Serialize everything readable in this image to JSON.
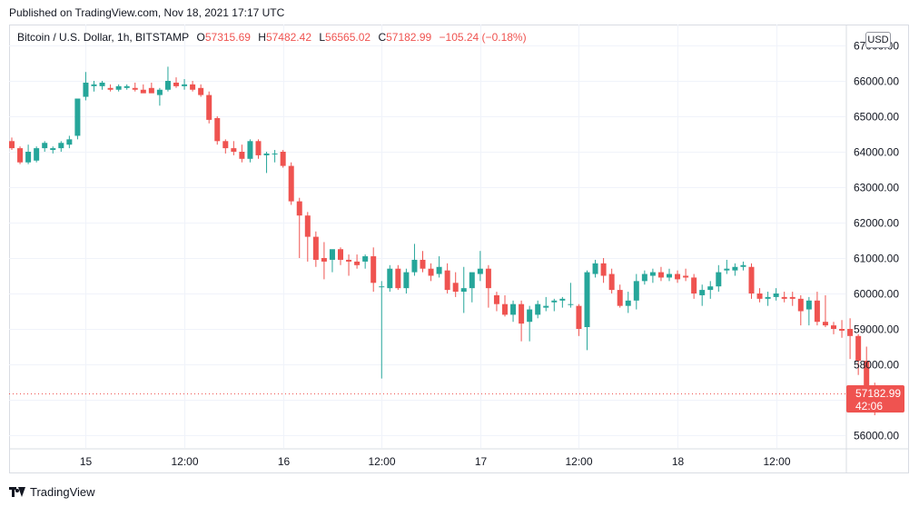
{
  "header": {
    "published": "Published on TradingView.com, Nov 18, 2021 17:17 UTC"
  },
  "legend": {
    "title": "Bitcoin / U.S. Dollar, 1h, BITSTAMP",
    "open_label": "O",
    "open": "57315.69",
    "high_label": "H",
    "high": "57482.42",
    "low_label": "L",
    "low": "56565.02",
    "close_label": "C",
    "close": "57182.99",
    "change": "−105.24 (−0.18%)"
  },
  "currency_badge": "USD",
  "last_price": {
    "price": "57182.99",
    "countdown": "42:06"
  },
  "brand": {
    "name": "TradingView",
    "icon": "tradingview-logo-icon"
  },
  "colors": {
    "up": "#26a69a",
    "down": "#ef5350",
    "grid": "#f0f3fa",
    "axis_text": "#131722"
  },
  "chart_data": {
    "type": "candlestick",
    "title": "Bitcoin / U.S. Dollar, 1h, BITSTAMP",
    "ylim": [
      55600,
      67200
    ],
    "y_ticks": [
      {
        "value": 56000,
        "label": "56000.00"
      },
      {
        "value": 57000,
        "label": "57000.00"
      },
      {
        "value": 58000,
        "label": "58000.00"
      },
      {
        "value": 59000,
        "label": "59000.00"
      },
      {
        "value": 60000,
        "label": "60000.00"
      },
      {
        "value": 61000,
        "label": "61000.00"
      },
      {
        "value": 62000,
        "label": "62000.00"
      },
      {
        "value": 63000,
        "label": "63000.00"
      },
      {
        "value": 64000,
        "label": "64000.00"
      },
      {
        "value": 65000,
        "label": "65000.00"
      },
      {
        "value": 66000,
        "label": "66000.00"
      },
      {
        "value": 67000,
        "label": "67000.00"
      }
    ],
    "x_ticks": [
      {
        "index": 9,
        "label": "15"
      },
      {
        "index": 21,
        "label": "12:00"
      },
      {
        "index": 33,
        "label": "16"
      },
      {
        "index": 45,
        "label": "12:00"
      },
      {
        "index": 57,
        "label": "17"
      },
      {
        "index": 69,
        "label": "12:00"
      },
      {
        "index": 81,
        "label": "18"
      },
      {
        "index": 93,
        "label": "12:00"
      }
    ],
    "last_price": 57182.99,
    "grid": true,
    "candles": [
      {
        "o": 64300,
        "h": 64400,
        "l": 64050,
        "c": 64100
      },
      {
        "o": 64100,
        "h": 64150,
        "l": 63650,
        "c": 63700
      },
      {
        "o": 63700,
        "h": 64200,
        "l": 63650,
        "c": 64000
      },
      {
        "o": 63750,
        "h": 64150,
        "l": 63700,
        "c": 64100
      },
      {
        "o": 64100,
        "h": 64300,
        "l": 64000,
        "c": 64250
      },
      {
        "o": 64050,
        "h": 64150,
        "l": 63950,
        "c": 64100
      },
      {
        "o": 64100,
        "h": 64300,
        "l": 64000,
        "c": 64250
      },
      {
        "o": 64200,
        "h": 64450,
        "l": 64100,
        "c": 64350
      },
      {
        "o": 64450,
        "h": 65500,
        "l": 64350,
        "c": 65500
      },
      {
        "o": 65550,
        "h": 66250,
        "l": 65450,
        "c": 65950
      },
      {
        "o": 65850,
        "h": 66000,
        "l": 65700,
        "c": 65900
      },
      {
        "o": 65850,
        "h": 66000,
        "l": 65750,
        "c": 65950
      },
      {
        "o": 65800,
        "h": 65900,
        "l": 65700,
        "c": 65750
      },
      {
        "o": 65750,
        "h": 65900,
        "l": 65700,
        "c": 65850
      },
      {
        "o": 65800,
        "h": 65900,
        "l": 65750,
        "c": 65850
      },
      {
        "o": 65800,
        "h": 65950,
        "l": 65700,
        "c": 65750
      },
      {
        "o": 65750,
        "h": 65900,
        "l": 65700,
        "c": 65650
      },
      {
        "o": 65800,
        "h": 65950,
        "l": 65700,
        "c": 65650
      },
      {
        "o": 65600,
        "h": 65800,
        "l": 65300,
        "c": 65750
      },
      {
        "o": 65750,
        "h": 66400,
        "l": 65700,
        "c": 66000
      },
      {
        "o": 65950,
        "h": 66100,
        "l": 65800,
        "c": 65850
      },
      {
        "o": 65850,
        "h": 66050,
        "l": 65750,
        "c": 65900
      },
      {
        "o": 65900,
        "h": 66000,
        "l": 65700,
        "c": 65750
      },
      {
        "o": 65800,
        "h": 65900,
        "l": 65550,
        "c": 65600
      },
      {
        "o": 65600,
        "h": 65700,
        "l": 64800,
        "c": 64900
      },
      {
        "o": 64950,
        "h": 65000,
        "l": 64200,
        "c": 64300
      },
      {
        "o": 64300,
        "h": 64350,
        "l": 63950,
        "c": 64100
      },
      {
        "o": 64100,
        "h": 64300,
        "l": 63900,
        "c": 64000
      },
      {
        "o": 64000,
        "h": 64200,
        "l": 63700,
        "c": 63800
      },
      {
        "o": 63800,
        "h": 64350,
        "l": 63700,
        "c": 64300
      },
      {
        "o": 64300,
        "h": 64350,
        "l": 63800,
        "c": 63900
      },
      {
        "o": 63900,
        "h": 64000,
        "l": 63400,
        "c": 63950
      },
      {
        "o": 63950,
        "h": 64050,
        "l": 63700,
        "c": 63950
      },
      {
        "o": 64000,
        "h": 64050,
        "l": 63550,
        "c": 63600
      },
      {
        "o": 63600,
        "h": 63700,
        "l": 62500,
        "c": 62600
      },
      {
        "o": 62600,
        "h": 62700,
        "l": 61000,
        "c": 62200
      },
      {
        "o": 62200,
        "h": 62300,
        "l": 60900,
        "c": 61600
      },
      {
        "o": 61600,
        "h": 61750,
        "l": 60750,
        "c": 60950
      },
      {
        "o": 61000,
        "h": 61450,
        "l": 60400,
        "c": 60900
      },
      {
        "o": 60950,
        "h": 61200,
        "l": 60600,
        "c": 61250
      },
      {
        "o": 61250,
        "h": 61300,
        "l": 60800,
        "c": 60950
      },
      {
        "o": 60950,
        "h": 61100,
        "l": 60500,
        "c": 60900
      },
      {
        "o": 60900,
        "h": 61100,
        "l": 60700,
        "c": 60800
      },
      {
        "o": 60900,
        "h": 61100,
        "l": 60700,
        "c": 61050
      },
      {
        "o": 61050,
        "h": 61300,
        "l": 60050,
        "c": 60300
      },
      {
        "o": 60200,
        "h": 60350,
        "l": 57600,
        "c": 60200
      },
      {
        "o": 60150,
        "h": 60800,
        "l": 60050,
        "c": 60700
      },
      {
        "o": 60700,
        "h": 60800,
        "l": 60100,
        "c": 60150
      },
      {
        "o": 60150,
        "h": 60700,
        "l": 60000,
        "c": 60600
      },
      {
        "o": 60600,
        "h": 61400,
        "l": 60500,
        "c": 60950
      },
      {
        "o": 60950,
        "h": 61200,
        "l": 60600,
        "c": 60700
      },
      {
        "o": 60700,
        "h": 60850,
        "l": 60350,
        "c": 60500
      },
      {
        "o": 60550,
        "h": 61050,
        "l": 60450,
        "c": 60750
      },
      {
        "o": 60650,
        "h": 60850,
        "l": 60000,
        "c": 60100
      },
      {
        "o": 60300,
        "h": 60600,
        "l": 59900,
        "c": 60050
      },
      {
        "o": 60050,
        "h": 60750,
        "l": 59450,
        "c": 60150
      },
      {
        "o": 60150,
        "h": 60550,
        "l": 59750,
        "c": 60600
      },
      {
        "o": 60550,
        "h": 61200,
        "l": 60350,
        "c": 60700
      },
      {
        "o": 60700,
        "h": 60800,
        "l": 59600,
        "c": 60150
      },
      {
        "o": 59950,
        "h": 60050,
        "l": 59500,
        "c": 59700
      },
      {
        "o": 59700,
        "h": 59950,
        "l": 59350,
        "c": 59400
      },
      {
        "o": 59400,
        "h": 59800,
        "l": 59200,
        "c": 59700
      },
      {
        "o": 59700,
        "h": 59800,
        "l": 58650,
        "c": 59150
      },
      {
        "o": 59200,
        "h": 59650,
        "l": 58650,
        "c": 59550
      },
      {
        "o": 59400,
        "h": 59800,
        "l": 59300,
        "c": 59700
      },
      {
        "o": 59600,
        "h": 59900,
        "l": 59500,
        "c": 59650
      },
      {
        "o": 59750,
        "h": 59850,
        "l": 59500,
        "c": 59800
      },
      {
        "o": 59800,
        "h": 59900,
        "l": 59600,
        "c": 59850
      },
      {
        "o": 59700,
        "h": 60300,
        "l": 59600,
        "c": 59700
      },
      {
        "o": 59650,
        "h": 59700,
        "l": 58800,
        "c": 59000
      },
      {
        "o": 59050,
        "h": 60650,
        "l": 58400,
        "c": 60600
      },
      {
        "o": 60550,
        "h": 60950,
        "l": 60450,
        "c": 60850
      },
      {
        "o": 60850,
        "h": 61000,
        "l": 60300,
        "c": 60500
      },
      {
        "o": 60550,
        "h": 60700,
        "l": 60000,
        "c": 60100
      },
      {
        "o": 60100,
        "h": 60250,
        "l": 59600,
        "c": 59650
      },
      {
        "o": 59650,
        "h": 60050,
        "l": 59450,
        "c": 59800
      },
      {
        "o": 59800,
        "h": 60550,
        "l": 59550,
        "c": 60350
      },
      {
        "o": 60350,
        "h": 60650,
        "l": 60250,
        "c": 60550
      },
      {
        "o": 60500,
        "h": 60700,
        "l": 60300,
        "c": 60600
      },
      {
        "o": 60600,
        "h": 60750,
        "l": 60350,
        "c": 60450
      },
      {
        "o": 60450,
        "h": 60700,
        "l": 60350,
        "c": 60550
      },
      {
        "o": 60550,
        "h": 60650,
        "l": 60300,
        "c": 60400
      },
      {
        "o": 60500,
        "h": 60700,
        "l": 60350,
        "c": 60450
      },
      {
        "o": 60450,
        "h": 60550,
        "l": 59850,
        "c": 60000
      },
      {
        "o": 59950,
        "h": 60250,
        "l": 59650,
        "c": 60100
      },
      {
        "o": 60100,
        "h": 60350,
        "l": 59850,
        "c": 60200
      },
      {
        "o": 60200,
        "h": 60800,
        "l": 60050,
        "c": 60600
      },
      {
        "o": 60650,
        "h": 60950,
        "l": 60550,
        "c": 60700
      },
      {
        "o": 60650,
        "h": 60850,
        "l": 60500,
        "c": 60750
      },
      {
        "o": 60750,
        "h": 60900,
        "l": 60650,
        "c": 60800
      },
      {
        "o": 60750,
        "h": 60850,
        "l": 59850,
        "c": 60000
      },
      {
        "o": 60000,
        "h": 60150,
        "l": 59750,
        "c": 59850
      },
      {
        "o": 59850,
        "h": 60050,
        "l": 59650,
        "c": 59900
      },
      {
        "o": 59900,
        "h": 60150,
        "l": 59800,
        "c": 60000
      },
      {
        "o": 59900,
        "h": 60050,
        "l": 59750,
        "c": 59850
      },
      {
        "o": 59900,
        "h": 60050,
        "l": 59650,
        "c": 59850
      },
      {
        "o": 59850,
        "h": 59950,
        "l": 59100,
        "c": 59500
      },
      {
        "o": 59550,
        "h": 59900,
        "l": 59100,
        "c": 59800
      },
      {
        "o": 59800,
        "h": 60050,
        "l": 59100,
        "c": 59200
      },
      {
        "o": 59200,
        "h": 59950,
        "l": 59050,
        "c": 59100
      },
      {
        "o": 59100,
        "h": 59200,
        "l": 58850,
        "c": 59000
      },
      {
        "o": 59000,
        "h": 59250,
        "l": 58750,
        "c": 58950
      },
      {
        "o": 59000,
        "h": 59300,
        "l": 58150,
        "c": 58800
      },
      {
        "o": 58800,
        "h": 58850,
        "l": 57700,
        "c": 58100
      },
      {
        "o": 58100,
        "h": 58500,
        "l": 57050,
        "c": 57300
      },
      {
        "o": 57315.69,
        "h": 57482.42,
        "l": 56565.02,
        "c": 57182.99
      }
    ]
  }
}
